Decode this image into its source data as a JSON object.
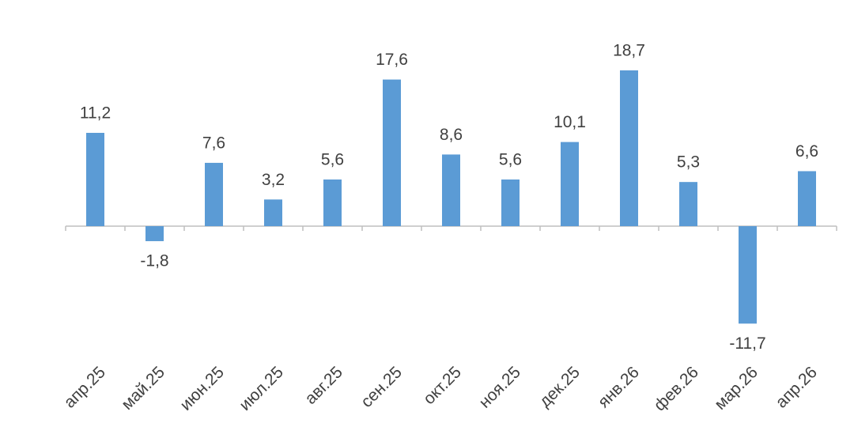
{
  "chart_data": {
    "type": "bar",
    "categories": [
      "апр.25",
      "май.25",
      "июн.25",
      "июл.25",
      "авг.25",
      "сен.25",
      "окт.25",
      "ноя.25",
      "дек.25",
      "янв.26",
      "фев.26",
      "мар.26",
      "апр.26"
    ],
    "values": [
      11.2,
      -1.8,
      7.6,
      3.2,
      5.6,
      17.6,
      8.6,
      5.6,
      10.1,
      18.7,
      5.3,
      -11.7,
      6.6
    ],
    "value_labels": [
      "11,2",
      "-1,8",
      "7,6",
      "3,2",
      "5,6",
      "17,6",
      "8,6",
      "5,6",
      "10,1",
      "18,7",
      "5,3",
      "-11,7",
      "6,6"
    ],
    "color": "#5b9bd5"
  }
}
